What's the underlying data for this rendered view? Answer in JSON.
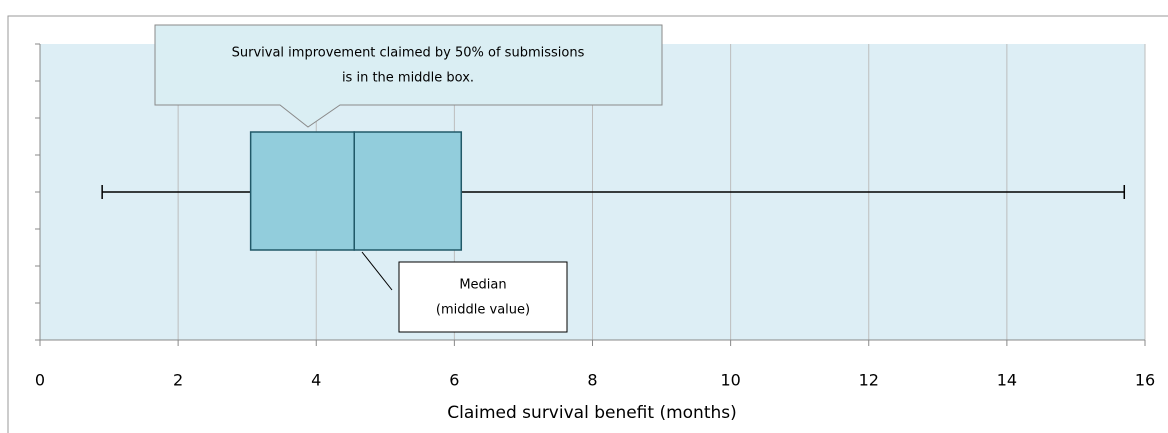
{
  "chart_data": {
    "type": "box",
    "orientation": "horizontal",
    "x_label": "Claimed survival benefit (months)",
    "box": {
      "min": 0.9,
      "q1": 3.05,
      "median": 4.55,
      "q3": 6.1,
      "max": 15.7
    },
    "color": "#92cddc",
    "edge_color": "#215968",
    "background": "#ddeef5",
    "xlim": [
      0,
      16
    ],
    "xticks": [
      0,
      2,
      4,
      6,
      8,
      10,
      12,
      14,
      16
    ],
    "grid": true,
    "annotations": [
      {
        "lines": [
          "Survival improvement claimed by 50% of submissions",
          "is in the middle box."
        ]
      },
      {
        "lines": [
          "Median",
          "(middle value)"
        ]
      }
    ]
  }
}
